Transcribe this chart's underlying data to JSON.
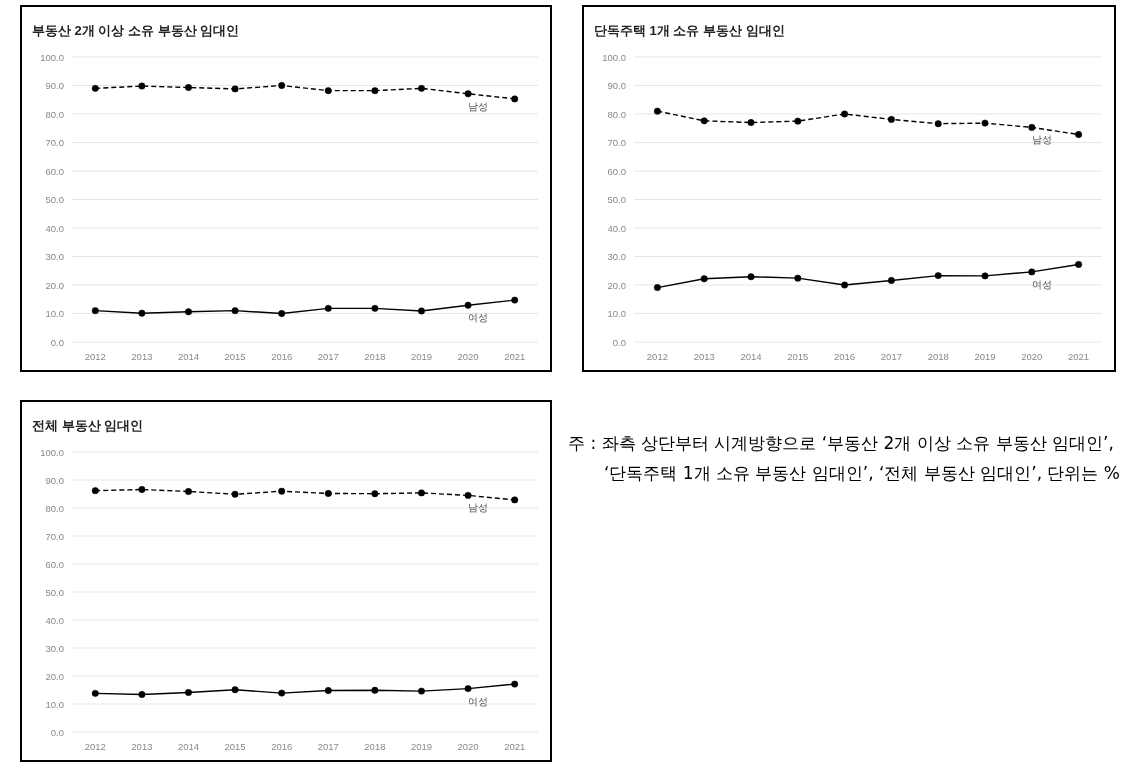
{
  "chart_data": [
    {
      "type": "line",
      "title": "부동산 2개 이상 소유 부동산 임대인",
      "categories": [
        "2012",
        "2013",
        "2014",
        "2015",
        "2016",
        "2017",
        "2018",
        "2019",
        "2020",
        "2021"
      ],
      "series": [
        {
          "name": "남성",
          "color": "#000000",
          "line_style": "dashed",
          "values": [
            89.0,
            89.8,
            89.3,
            88.8,
            90.0,
            88.2,
            88.2,
            89.0,
            87.1,
            85.3
          ]
        },
        {
          "name": "여성",
          "color": "#000000",
          "line_style": "solid",
          "values": [
            11.0,
            10.1,
            10.6,
            11.0,
            10.0,
            11.8,
            11.8,
            10.9,
            12.9,
            14.7
          ]
        }
      ],
      "ylim": [
        0,
        100
      ],
      "yticks": [
        {
          "value": 0,
          "label": "0.0"
        },
        {
          "value": 10,
          "label": "10.0"
        },
        {
          "value": 20,
          "label": "20.0"
        },
        {
          "value": 30,
          "label": "30.0"
        },
        {
          "value": 40,
          "label": "40.0"
        },
        {
          "value": 50,
          "label": "50.0"
        },
        {
          "value": 60,
          "label": "60.0"
        },
        {
          "value": 70,
          "label": "70.0"
        },
        {
          "value": 80,
          "label": "80.0"
        },
        {
          "value": 90,
          "label": "90.0"
        },
        {
          "value": 100,
          "label": "100.0"
        }
      ],
      "grid": "y",
      "marker": "circle"
    },
    {
      "type": "line",
      "title": "단독주택 1개 소유 부동산 임대인",
      "categories": [
        "2012",
        "2013",
        "2014",
        "2015",
        "2016",
        "2017",
        "2018",
        "2019",
        "2020",
        "2021"
      ],
      "series": [
        {
          "name": "남성",
          "color": "#000000",
          "line_style": "dashed",
          "values": [
            81.0,
            77.6,
            77.0,
            77.5,
            80.0,
            78.1,
            76.6,
            76.8,
            75.3,
            72.8
          ]
        },
        {
          "name": "여성",
          "color": "#000000",
          "line_style": "solid",
          "values": [
            19.1,
            22.2,
            22.9,
            22.4,
            20.0,
            21.6,
            23.3,
            23.2,
            24.6,
            27.2
          ]
        }
      ],
      "ylim": [
        0,
        100
      ],
      "yticks": [
        {
          "value": 0,
          "label": "0.0"
        },
        {
          "value": 10,
          "label": "10.0"
        },
        {
          "value": 20,
          "label": "20.0"
        },
        {
          "value": 30,
          "label": "30.0"
        },
        {
          "value": 40,
          "label": "40.0"
        },
        {
          "value": 50,
          "label": "50.0"
        },
        {
          "value": 60,
          "label": "60.0"
        },
        {
          "value": 70,
          "label": "70.0"
        },
        {
          "value": 80,
          "label": "80.0"
        },
        {
          "value": 90,
          "label": "90.0"
        },
        {
          "value": 100,
          "label": "100.0"
        }
      ],
      "grid": "y",
      "marker": "circle"
    },
    {
      "type": "line",
      "title": "전체 부동산 임대인",
      "categories": [
        "2012",
        "2013",
        "2014",
        "2015",
        "2016",
        "2017",
        "2018",
        "2019",
        "2020",
        "2021"
      ],
      "series": [
        {
          "name": "남성",
          "color": "#000000",
          "line_style": "dashed",
          "values": [
            86.2,
            86.6,
            85.9,
            84.9,
            86.0,
            85.2,
            85.1,
            85.4,
            84.5,
            82.9
          ]
        },
        {
          "name": "여성",
          "color": "#000000",
          "line_style": "solid",
          "values": [
            13.8,
            13.4,
            14.1,
            15.1,
            13.9,
            14.8,
            14.9,
            14.6,
            15.5,
            17.1
          ]
        }
      ],
      "ylim": [
        0,
        100
      ],
      "yticks": [
        {
          "value": 0,
          "label": "0.0"
        },
        {
          "value": 10,
          "label": "10.0"
        },
        {
          "value": 20,
          "label": "20.0"
        },
        {
          "value": 30,
          "label": "30.0"
        },
        {
          "value": 40,
          "label": "40.0"
        },
        {
          "value": 50,
          "label": "50.0"
        },
        {
          "value": 60,
          "label": "60.0"
        },
        {
          "value": 70,
          "label": "70.0"
        },
        {
          "value": 80,
          "label": "80.0"
        },
        {
          "value": 90,
          "label": "90.0"
        },
        {
          "value": 100,
          "label": "100.0"
        }
      ],
      "grid": "y",
      "marker": "circle"
    },
    {
      "type": "other",
      "annotations": [
        "주 : 좌측 상단부터 시계방향으로 ‘부동산 2개 이상 소유 부동산 임대인’, ‘단독주택 1개 소유 부동산 임대인’, ‘전체 부동산 임대인’, 단위는 %"
      ]
    }
  ]
}
